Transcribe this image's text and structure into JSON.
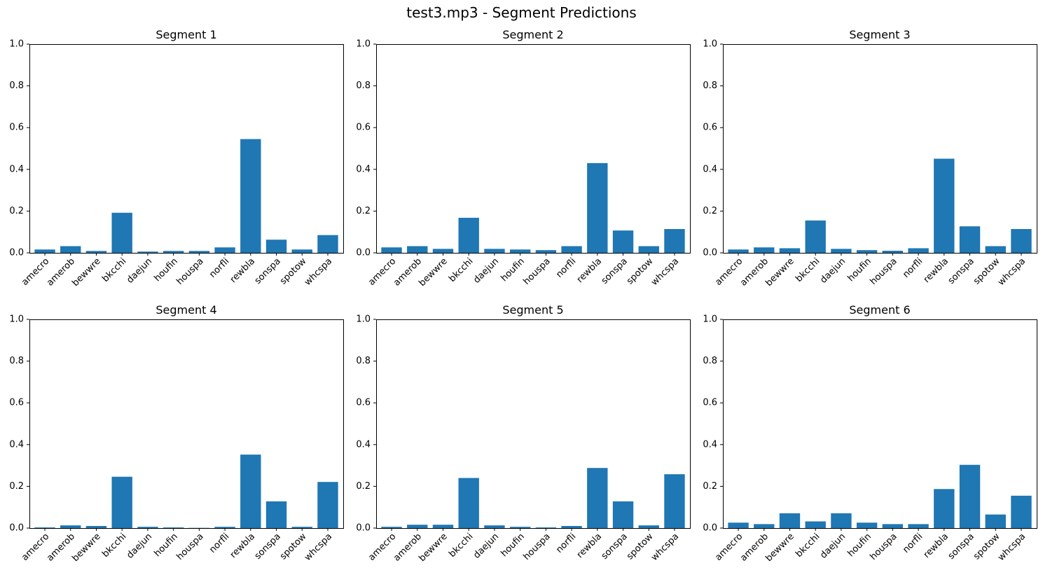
{
  "figure_title": "test3.mp3 - Segment Predictions",
  "chart_data": [
    {
      "type": "bar",
      "title": "Segment 1",
      "categories": [
        "amecro",
        "amerob",
        "bewwre",
        "bkcchi",
        "daejun",
        "houfin",
        "houspa",
        "norfli",
        "rewbla",
        "sonspa",
        "spotow",
        "whcspa"
      ],
      "values": [
        0.016,
        0.032,
        0.009,
        0.192,
        0.006,
        0.009,
        0.009,
        0.026,
        0.545,
        0.063,
        0.016,
        0.085
      ],
      "ylim": [
        0,
        1
      ],
      "yticks": [
        "0.0",
        "0.2",
        "0.4",
        "0.6",
        "0.8",
        "1.0"
      ],
      "color": "#1f77b4",
      "xlabel": "",
      "ylabel": ""
    },
    {
      "type": "bar",
      "title": "Segment 2",
      "categories": [
        "amecro",
        "amerob",
        "bewwre",
        "bkcchi",
        "daejun",
        "houfin",
        "houspa",
        "norfli",
        "rewbla",
        "sonspa",
        "spotow",
        "whcspa"
      ],
      "values": [
        0.026,
        0.032,
        0.019,
        0.168,
        0.019,
        0.016,
        0.013,
        0.032,
        0.43,
        0.107,
        0.032,
        0.114
      ],
      "ylim": [
        0,
        1
      ],
      "yticks": [
        "0.0",
        "0.2",
        "0.4",
        "0.6",
        "0.8",
        "1.0"
      ],
      "color": "#1f77b4",
      "xlabel": "",
      "ylabel": ""
    },
    {
      "type": "bar",
      "title": "Segment 3",
      "categories": [
        "amecro",
        "amerob",
        "bewwre",
        "bkcchi",
        "daejun",
        "houfin",
        "houspa",
        "norfli",
        "rewbla",
        "sonspa",
        "spotow",
        "whcspa"
      ],
      "values": [
        0.016,
        0.026,
        0.022,
        0.155,
        0.019,
        0.013,
        0.01,
        0.022,
        0.451,
        0.127,
        0.032,
        0.114
      ],
      "ylim": [
        0,
        1
      ],
      "yticks": [
        "0.0",
        "0.2",
        "0.4",
        "0.6",
        "0.8",
        "1.0"
      ],
      "color": "#1f77b4",
      "xlabel": "",
      "ylabel": ""
    },
    {
      "type": "bar",
      "title": "Segment 4",
      "categories": [
        "amecro",
        "amerob",
        "bewwre",
        "bkcchi",
        "daejun",
        "houfin",
        "houspa",
        "norfli",
        "rewbla",
        "sonspa",
        "spotow",
        "whcspa"
      ],
      "values": [
        0.003,
        0.013,
        0.01,
        0.246,
        0.006,
        0.003,
        0.001,
        0.006,
        0.352,
        0.128,
        0.006,
        0.221
      ],
      "ylim": [
        0,
        1
      ],
      "yticks": [
        "0.0",
        "0.2",
        "0.4",
        "0.6",
        "0.8",
        "1.0"
      ],
      "color": "#1f77b4",
      "xlabel": "",
      "ylabel": ""
    },
    {
      "type": "bar",
      "title": "Segment 5",
      "categories": [
        "amecro",
        "amerob",
        "bewwre",
        "bkcchi",
        "daejun",
        "houfin",
        "houspa",
        "norfli",
        "rewbla",
        "sonspa",
        "spotow",
        "whcspa"
      ],
      "values": [
        0.006,
        0.016,
        0.016,
        0.24,
        0.013,
        0.006,
        0.003,
        0.01,
        0.288,
        0.128,
        0.013,
        0.258
      ],
      "ylim": [
        0,
        1
      ],
      "yticks": [
        "0.0",
        "0.2",
        "0.4",
        "0.6",
        "0.8",
        "1.0"
      ],
      "color": "#1f77b4",
      "xlabel": "",
      "ylabel": ""
    },
    {
      "type": "bar",
      "title": "Segment 6",
      "categories": [
        "amecro",
        "amerob",
        "bewwre",
        "bkcchi",
        "daejun",
        "houfin",
        "houspa",
        "norfli",
        "rewbla",
        "sonspa",
        "spotow",
        "whcspa"
      ],
      "values": [
        0.026,
        0.019,
        0.071,
        0.032,
        0.071,
        0.026,
        0.019,
        0.019,
        0.187,
        0.303,
        0.065,
        0.155
      ],
      "ylim": [
        0,
        1
      ],
      "yticks": [
        "0.0",
        "0.2",
        "0.4",
        "0.6",
        "0.8",
        "1.0"
      ],
      "color": "#1f77b4",
      "xlabel": "",
      "ylabel": ""
    }
  ]
}
